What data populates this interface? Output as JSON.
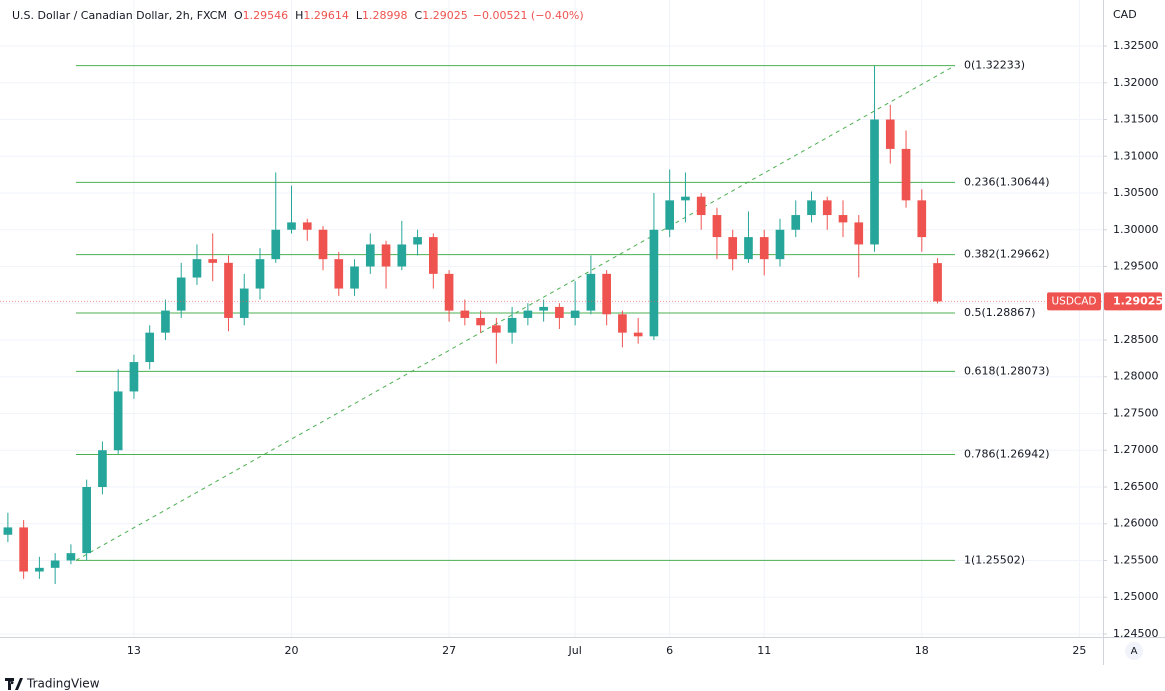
{
  "chart_data": {
    "type": "candlestick",
    "header": {
      "title": "U.S. Dollar / Canadian Dollar, 2h, FXCM",
      "fields": [
        {
          "label": "O",
          "value": "1.29546"
        },
        {
          "label": "H",
          "value": "1.29614"
        },
        {
          "label": "L",
          "value": "1.28998"
        },
        {
          "label": "C",
          "value": "1.29025"
        },
        {
          "label": "",
          "value": "−0.00521 (−0.40%)"
        }
      ]
    },
    "axis_unit": "CAD",
    "symbol": "USDCAD",
    "last_price": 1.29025,
    "up_color": "#26a69a",
    "down_color": "#ef5350",
    "categories": [
      null,
      null,
      null,
      null,
      null,
      null,
      null,
      null,
      "13",
      null,
      null,
      null,
      null,
      null,
      null,
      null,
      null,
      null,
      "20",
      null,
      null,
      null,
      null,
      null,
      null,
      null,
      null,
      null,
      "27",
      null,
      null,
      null,
      null,
      null,
      null,
      null,
      "Jul",
      null,
      null,
      null,
      null,
      null,
      "6",
      null,
      null,
      null,
      null,
      null,
      "11",
      null,
      null,
      null,
      null,
      null,
      null,
      null,
      null,
      null,
      "18",
      null,
      null,
      null,
      null,
      null,
      null,
      null,
      null,
      null,
      "25",
      null
    ],
    "open": [
      1.2585,
      1.2595,
      1.2535,
      1.254,
      1.255,
      1.256,
      1.265,
      1.27,
      1.278,
      1.282,
      1.286,
      1.289,
      1.2935,
      1.296,
      1.2955,
      1.288,
      1.292,
      1.296,
      1.3,
      1.301,
      1.3,
      1.296,
      1.292,
      1.295,
      1.298,
      1.295,
      1.298,
      1.299,
      1.294,
      1.289,
      1.288,
      1.287,
      1.286,
      1.288,
      1.289,
      1.2895,
      1.288,
      1.289,
      1.294,
      1.2885,
      1.286,
      1.2855,
      1.3,
      1.304,
      1.3045,
      1.302,
      1.299,
      1.296,
      1.299,
      1.296,
      1.3,
      1.302,
      1.304,
      1.302,
      1.301,
      1.298,
      1.315,
      1.311,
      1.304,
      1.29546,
      null,
      null,
      null,
      null,
      null,
      null,
      null,
      null,
      null,
      null
    ],
    "high": [
      1.2615,
      1.2605,
      1.2555,
      1.256,
      1.2572,
      1.266,
      1.2712,
      1.281,
      1.283,
      1.287,
      1.2905,
      1.2955,
      1.298,
      1.2995,
      1.2965,
      1.294,
      1.2975,
      1.3078,
      1.306,
      1.3015,
      1.3005,
      1.297,
      1.296,
      1.2995,
      1.2985,
      1.3012,
      1.3,
      1.2995,
      1.2945,
      1.2905,
      1.289,
      1.288,
      1.2895,
      1.29,
      1.2905,
      1.29,
      1.293,
      1.2965,
      1.2945,
      1.289,
      1.288,
      1.305,
      1.3082,
      1.3078,
      1.305,
      1.303,
      1.3,
      1.3025,
      1.3,
      1.3015,
      1.304,
      1.3052,
      1.3045,
      1.304,
      1.302,
      1.32233,
      1.317,
      1.3135,
      1.3055,
      1.29614,
      null,
      null,
      null,
      null,
      null,
      null,
      null,
      null,
      null,
      null
    ],
    "low": [
      1.2575,
      1.2525,
      1.2525,
      1.2518,
      1.2545,
      1.255,
      1.264,
      1.2695,
      1.277,
      1.281,
      1.285,
      1.288,
      1.2925,
      1.293,
      1.2862,
      1.287,
      1.2905,
      1.2955,
      1.2995,
      1.2985,
      1.2945,
      1.291,
      1.291,
      1.294,
      1.292,
      1.2945,
      1.2965,
      1.292,
      1.2875,
      1.287,
      1.286,
      1.2818,
      1.2845,
      1.287,
      1.2875,
      1.2865,
      1.287,
      1.2885,
      1.287,
      1.284,
      1.2845,
      1.285,
      1.299,
      1.301,
      1.3,
      1.296,
      1.2945,
      1.2955,
      1.2938,
      1.295,
      1.299,
      1.301,
      1.3,
      1.299,
      1.2935,
      1.297,
      1.309,
      1.303,
      1.297,
      1.28998,
      null,
      null,
      null,
      null,
      null,
      null,
      null,
      null,
      null,
      null
    ],
    "close": [
      1.2595,
      1.2535,
      1.254,
      1.255,
      1.256,
      1.265,
      1.27,
      1.278,
      1.282,
      1.286,
      1.289,
      1.2935,
      1.296,
      1.2955,
      1.288,
      1.292,
      1.296,
      1.3,
      1.301,
      1.3,
      1.296,
      1.292,
      1.295,
      1.298,
      1.295,
      1.298,
      1.299,
      1.294,
      1.289,
      1.288,
      1.287,
      1.286,
      1.288,
      1.289,
      1.2895,
      1.288,
      1.289,
      1.294,
      1.2885,
      1.286,
      1.2855,
      1.3,
      1.304,
      1.3045,
      1.302,
      1.299,
      1.296,
      1.299,
      1.296,
      1.3,
      1.302,
      1.304,
      1.302,
      1.301,
      1.298,
      1.315,
      1.311,
      1.304,
      1.299,
      1.29025,
      null,
      null,
      null,
      null,
      null,
      null,
      null,
      null,
      null,
      null
    ],
    "fib_color": "#4caf50",
    "fib_levels": [
      {
        "value": 1.32233,
        "label": "0(1.32233)"
      },
      {
        "value": 1.30644,
        "label": "0.236(1.30644)"
      },
      {
        "value": 1.29662,
        "label": "0.382(1.29662)"
      },
      {
        "value": 1.28867,
        "label": "0.5(1.28867)"
      },
      {
        "value": 1.28073,
        "label": "0.618(1.28073)"
      },
      {
        "value": 1.26942,
        "label": "0.786(1.26942)"
      },
      {
        "value": 1.25502,
        "label": "1(1.25502)"
      }
    ],
    "ylim": [
      1.24459,
      1.33126
    ],
    "yticks": [
      {
        "value": 1.245,
        "label": "1.24500"
      },
      {
        "value": 1.25,
        "label": "1.25000"
      },
      {
        "value": 1.255,
        "label": "1.25500"
      },
      {
        "value": 1.26,
        "label": "1.26000"
      },
      {
        "value": 1.265,
        "label": "1.26500"
      },
      {
        "value": 1.27,
        "label": "1.27000"
      },
      {
        "value": 1.275,
        "label": "1.27500"
      },
      {
        "value": 1.28,
        "label": "1.28000"
      },
      {
        "value": 1.285,
        "label": "1.28500"
      },
      {
        "value": 1.29,
        "label": "1.29000"
      },
      {
        "value": 1.295,
        "label": "1.29500"
      },
      {
        "value": 1.3,
        "label": "1.30000"
      },
      {
        "value": 1.305,
        "label": "1.30500"
      },
      {
        "value": 1.31,
        "label": "1.31000"
      },
      {
        "value": 1.315,
        "label": "1.31500"
      },
      {
        "value": 1.32,
        "label": "1.32000"
      },
      {
        "value": 1.325,
        "label": "1.32500"
      }
    ],
    "grid": true,
    "scale_button": "A",
    "brand": "TradingView"
  }
}
